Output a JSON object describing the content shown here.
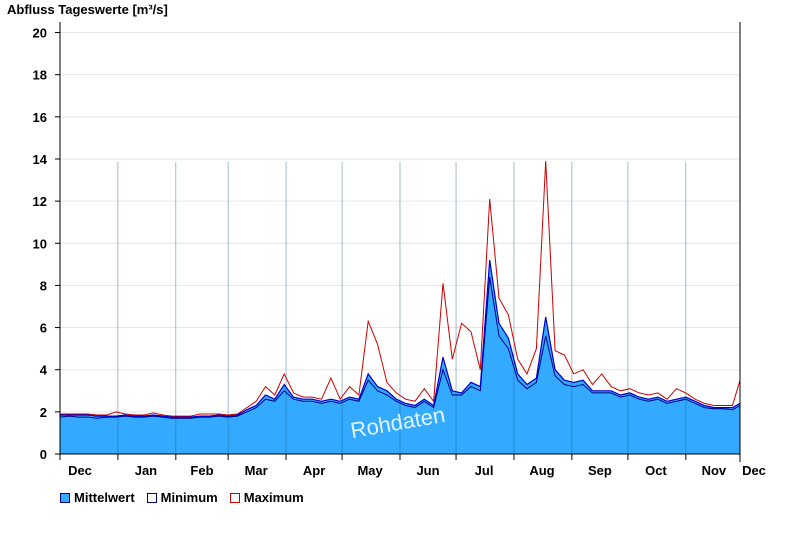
{
  "chart_data": {
    "type": "area",
    "title": "Abfluss Tageswerte [m³/s]",
    "ylim": [
      0,
      20.5
    ],
    "yticks": [
      0,
      2,
      4,
      6,
      8,
      10,
      12,
      14,
      16,
      18,
      20
    ],
    "grid": true,
    "watermark": "Rohdaten",
    "xlabels": [
      "Dec",
      "Jan",
      "Feb",
      "Mar",
      "Apr",
      "May",
      "Jun",
      "Jul",
      "Aug",
      "Sep",
      "Oct",
      "Nov",
      "Dec"
    ],
    "colors": {
      "mean_fill": "#33aaff",
      "min_line": "#000080",
      "max_line": "#cc0000",
      "mean_line": "#0000cc"
    },
    "series": [
      {
        "name": "Mittelwert",
        "x": [
          0,
          5,
          10,
          15,
          20,
          25,
          30,
          35,
          40,
          45,
          50,
          55,
          60,
          65,
          70,
          75,
          80,
          85,
          90,
          95,
          100,
          105,
          110,
          115,
          120,
          125,
          130,
          135,
          140,
          145,
          150,
          155,
          160,
          165,
          170,
          175,
          180,
          185,
          190,
          195,
          200,
          205,
          210,
          215,
          220,
          225,
          230,
          235,
          240,
          245,
          250,
          255,
          260,
          265,
          270,
          275,
          280,
          285,
          290,
          295,
          300,
          305,
          310,
          315,
          320,
          325,
          330,
          335,
          340,
          345,
          350,
          355,
          360,
          364
        ],
        "values": [
          1.85,
          1.85,
          1.85,
          1.85,
          1.8,
          1.8,
          1.8,
          1.85,
          1.8,
          1.8,
          1.85,
          1.8,
          1.75,
          1.75,
          1.75,
          1.8,
          1.8,
          1.85,
          1.8,
          1.85,
          2.1,
          2.3,
          2.8,
          2.6,
          3.3,
          2.7,
          2.6,
          2.6,
          2.5,
          2.6,
          2.5,
          2.7,
          2.6,
          3.8,
          3.2,
          3.0,
          2.6,
          2.4,
          2.3,
          2.6,
          2.3,
          4.6,
          3.0,
          2.9,
          3.4,
          3.2,
          9.2,
          6.2,
          5.5,
          3.8,
          3.3,
          3.6,
          6.5,
          4.0,
          3.5,
          3.4,
          3.5,
          3.0,
          3.0,
          3.0,
          2.8,
          2.9,
          2.7,
          2.6,
          2.7,
          2.5,
          2.6,
          2.7,
          2.5,
          2.3,
          2.2,
          2.2,
          2.2,
          2.4
        ]
      },
      {
        "name": "Minimum",
        "x": [
          0,
          5,
          10,
          15,
          20,
          25,
          30,
          35,
          40,
          45,
          50,
          55,
          60,
          65,
          70,
          75,
          80,
          85,
          90,
          95,
          100,
          105,
          110,
          115,
          120,
          125,
          130,
          135,
          140,
          145,
          150,
          155,
          160,
          165,
          170,
          175,
          180,
          185,
          190,
          195,
          200,
          205,
          210,
          215,
          220,
          225,
          230,
          235,
          240,
          245,
          250,
          255,
          260,
          265,
          270,
          275,
          280,
          285,
          290,
          295,
          300,
          305,
          310,
          315,
          320,
          325,
          330,
          335,
          340,
          345,
          350,
          355,
          360,
          364
        ],
        "values": [
          1.75,
          1.8,
          1.75,
          1.75,
          1.7,
          1.75,
          1.75,
          1.8,
          1.75,
          1.75,
          1.8,
          1.75,
          1.7,
          1.7,
          1.7,
          1.75,
          1.75,
          1.8,
          1.75,
          1.8,
          2.0,
          2.2,
          2.6,
          2.5,
          3.0,
          2.6,
          2.5,
          2.5,
          2.4,
          2.5,
          2.4,
          2.6,
          2.5,
          3.5,
          3.0,
          2.8,
          2.5,
          2.3,
          2.2,
          2.5,
          2.2,
          4.0,
          2.8,
          2.8,
          3.2,
          3.0,
          8.4,
          5.6,
          5.0,
          3.5,
          3.1,
          3.4,
          5.6,
          3.7,
          3.3,
          3.2,
          3.3,
          2.9,
          2.9,
          2.9,
          2.7,
          2.8,
          2.6,
          2.5,
          2.6,
          2.4,
          2.5,
          2.6,
          2.4,
          2.2,
          2.15,
          2.15,
          2.1,
          2.3
        ]
      },
      {
        "name": "Maximum",
        "x": [
          0,
          5,
          10,
          15,
          20,
          25,
          30,
          35,
          40,
          45,
          50,
          55,
          60,
          65,
          70,
          75,
          80,
          85,
          90,
          95,
          100,
          105,
          110,
          115,
          120,
          125,
          130,
          135,
          140,
          145,
          150,
          155,
          160,
          165,
          170,
          175,
          180,
          185,
          190,
          195,
          200,
          205,
          210,
          215,
          220,
          225,
          230,
          235,
          240,
          245,
          250,
          255,
          260,
          265,
          270,
          275,
          280,
          285,
          290,
          295,
          300,
          305,
          310,
          315,
          320,
          325,
          330,
          335,
          340,
          345,
          350,
          355,
          360,
          364
        ],
        "values": [
          1.9,
          1.9,
          1.9,
          1.9,
          1.85,
          1.85,
          2.0,
          1.9,
          1.85,
          1.85,
          1.95,
          1.85,
          1.8,
          1.8,
          1.8,
          1.9,
          1.9,
          1.9,
          1.85,
          1.9,
          2.2,
          2.5,
          3.2,
          2.8,
          3.8,
          2.9,
          2.7,
          2.7,
          2.6,
          3.6,
          2.6,
          3.2,
          2.8,
          6.3,
          5.2,
          3.4,
          2.9,
          2.6,
          2.5,
          3.1,
          2.5,
          8.1,
          4.5,
          6.2,
          5.8,
          4.0,
          12.1,
          7.4,
          6.6,
          4.5,
          3.8,
          5.0,
          13.9,
          4.9,
          4.7,
          3.8,
          4.0,
          3.3,
          3.8,
          3.2,
          3.0,
          3.1,
          2.9,
          2.8,
          2.9,
          2.6,
          3.1,
          2.9,
          2.6,
          2.4,
          2.3,
          2.3,
          2.3,
          3.5
        ]
      }
    ]
  }
}
